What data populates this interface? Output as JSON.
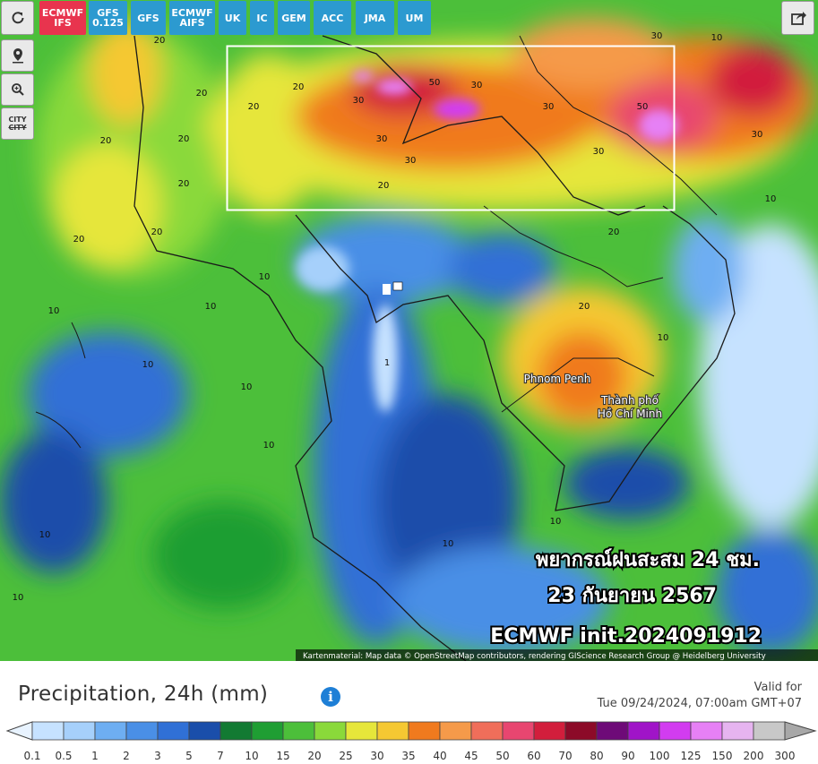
{
  "toolbar": {
    "models": [
      "ECMWF IFS",
      "GFS 0.125",
      "GFS",
      "ECMWF AIFS",
      "UK",
      "IC",
      "GEM",
      "ACC",
      "JMA",
      "UM"
    ]
  },
  "side_tools": {
    "city": "CITY"
  },
  "map": {
    "place_labels": [
      "Phnom Penh",
      "Thành phố",
      "Hồ Chí Minh"
    ],
    "contour_labels": [
      "20",
      "20",
      "20",
      "20",
      "20",
      "20",
      "20",
      "20",
      "20",
      "30",
      "30",
      "30",
      "20",
      "50",
      "30",
      "30",
      "30",
      "50",
      "30",
      "30",
      "20",
      "10",
      "10",
      "10",
      "10",
      "10",
      "10",
      "10",
      "10",
      "1",
      "20",
      "10",
      "10",
      "10",
      "10",
      "10"
    ],
    "overlay": [
      "พยากรณ์ฝนสะสม 24 ชม.",
      "23 กันยายน 2567",
      "ECMWF init.2024091912"
    ],
    "attribution": "Kartenmaterial: Map data © OpenStreetMap contributors, rendering GIScience Research Group @ Heidelberg University"
  },
  "legend": {
    "title": "Precipitation, 24h (mm)",
    "valid_label": "Valid for",
    "valid_time": "Tue 09/24/2024, 07:00am GMT+07",
    "scale": {
      "labels": [
        0.1,
        0.5,
        1,
        2,
        3,
        5,
        7,
        10,
        15,
        20,
        25,
        30,
        35,
        40,
        45,
        50,
        60,
        70,
        80,
        90,
        100,
        125,
        150,
        200,
        300
      ],
      "colors": [
        "#c6e2ff",
        "#a6d0fb",
        "#6eaef2",
        "#4a8fe6",
        "#3070d6",
        "#1a4eaa",
        "#127a32",
        "#1f9e33",
        "#4cbf3a",
        "#8ad93a",
        "#e6e63a",
        "#f5c832",
        "#f07a1e",
        "#f59a4a",
        "#f06e5a",
        "#e84670",
        "#d21e3c",
        "#8c0a28",
        "#6e0a78",
        "#a014c8",
        "#d23cf0",
        "#e680f5",
        "#e6b4f0",
        "#c8c8c8"
      ]
    }
  }
}
